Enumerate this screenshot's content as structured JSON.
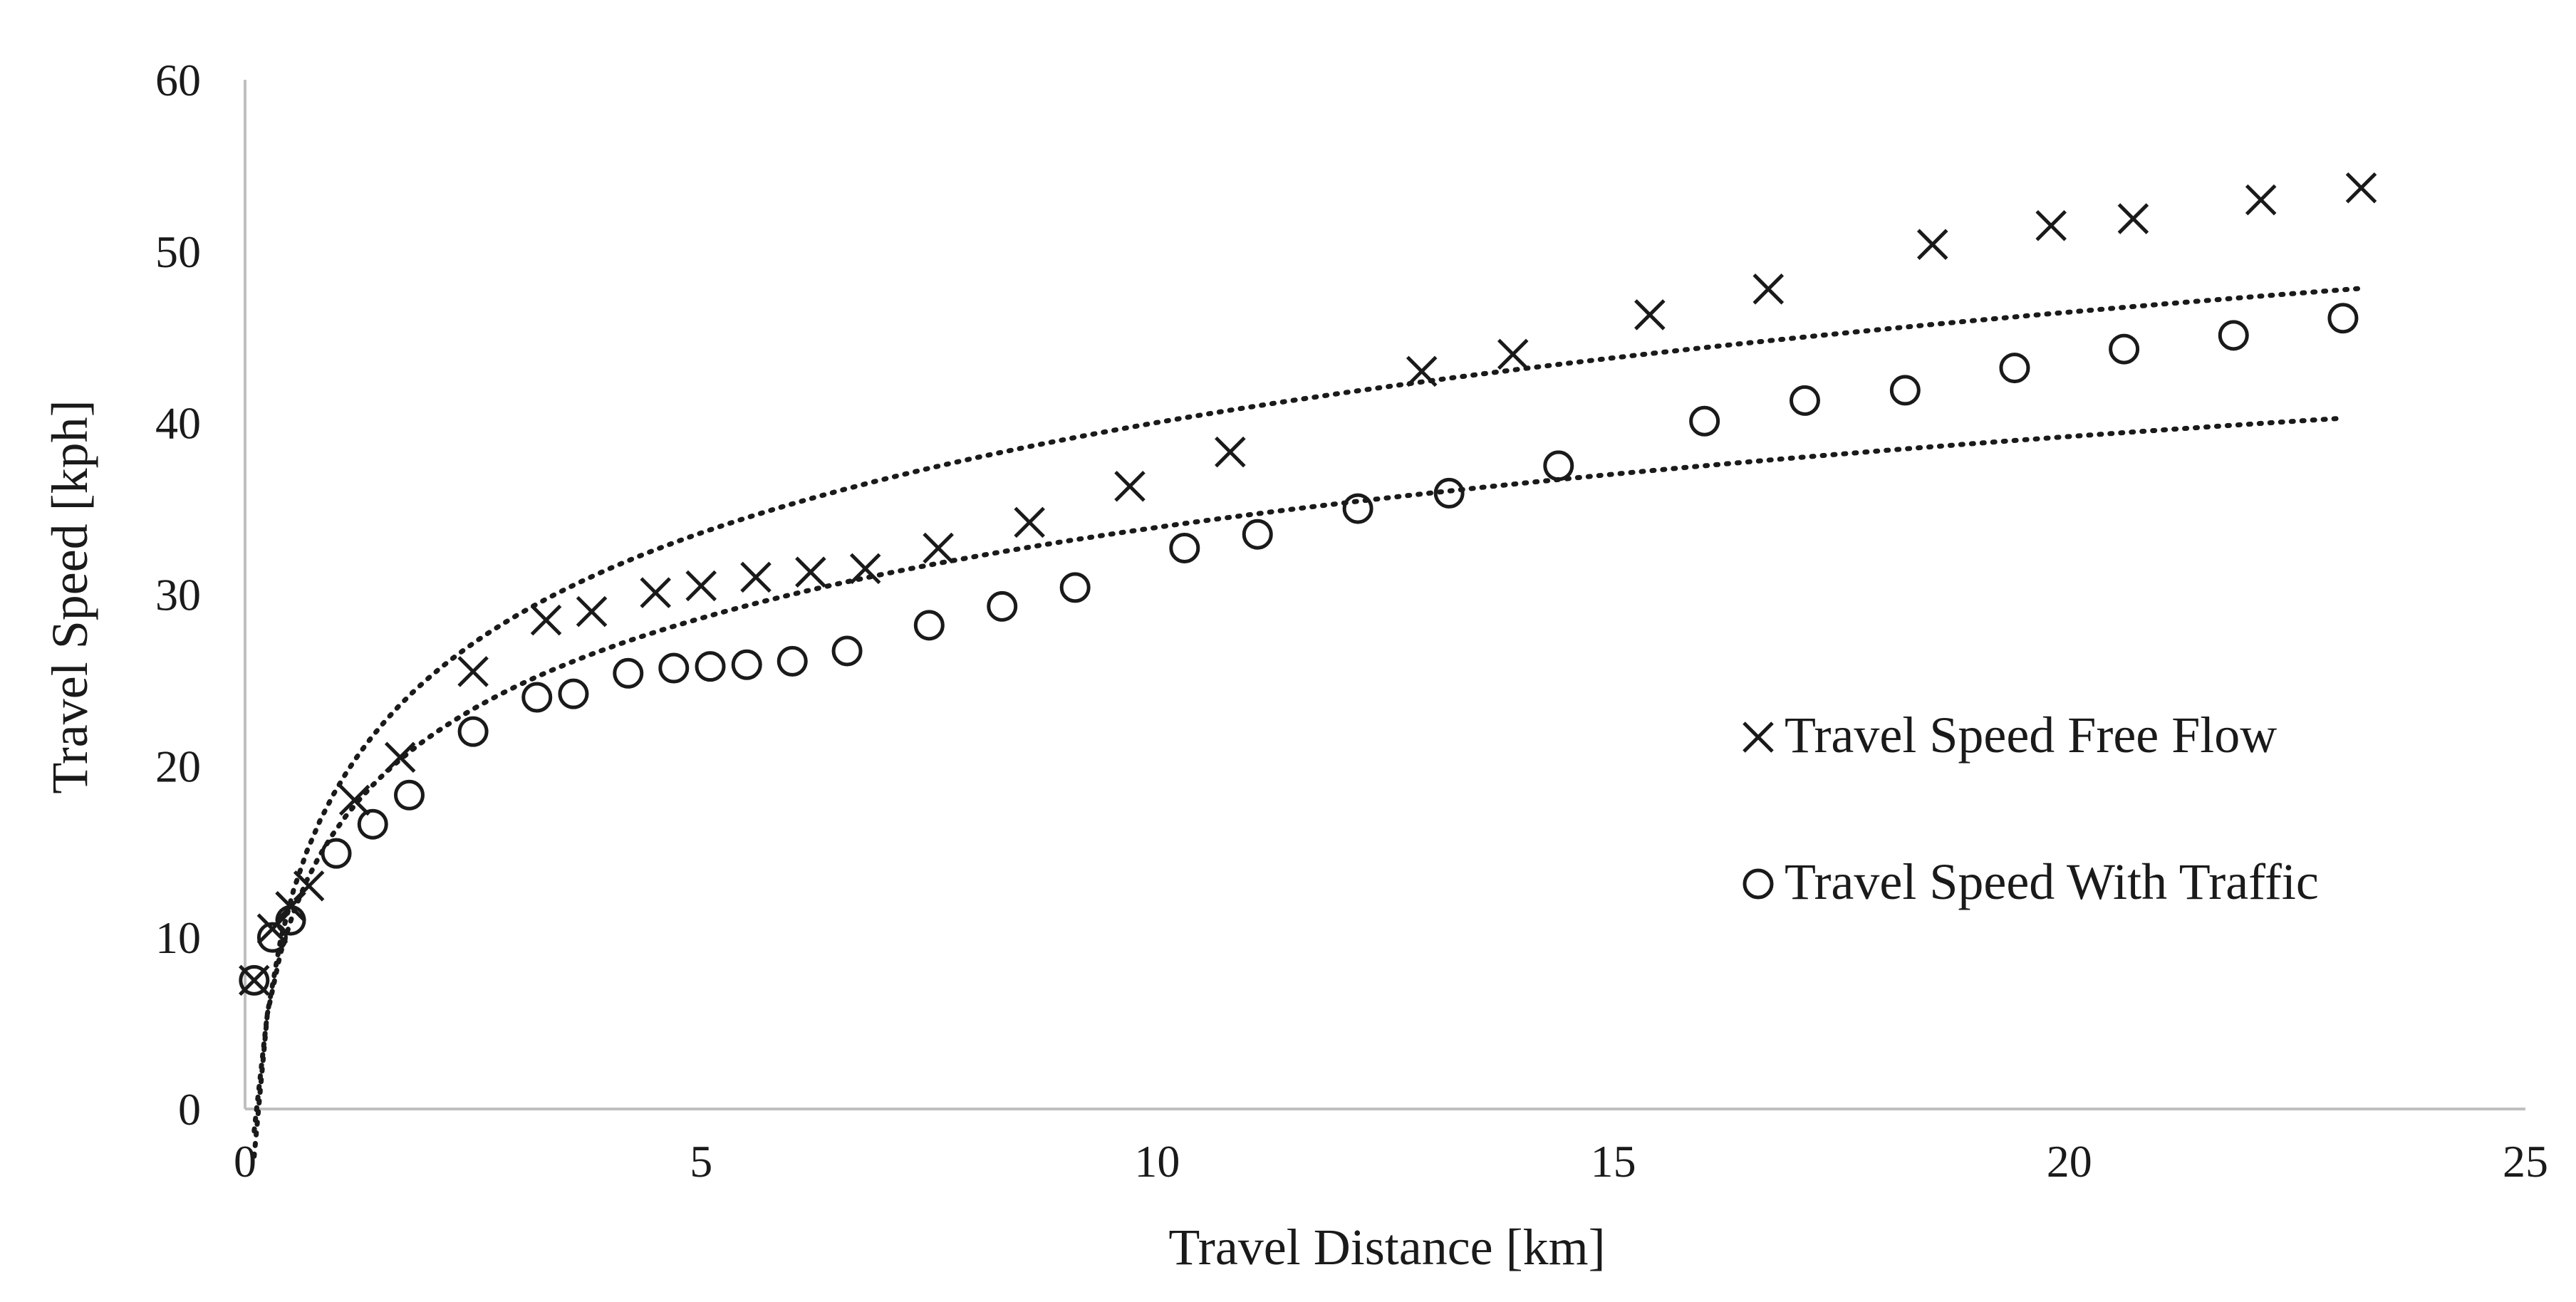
{
  "chart_data": {
    "type": "scatter",
    "xlabel": "Travel Distance [km]",
    "ylabel": "Travel Speed [kph]",
    "xlim": [
      0,
      25
    ],
    "ylim": [
      0,
      60
    ],
    "xticks": [
      0,
      5,
      10,
      15,
      20,
      25
    ],
    "yticks": [
      0,
      10,
      20,
      30,
      40,
      50,
      60
    ],
    "grid": false,
    "legend_position": "right",
    "series": [
      {
        "name": "Travel Speed Free Flow",
        "marker": "x",
        "trendline": "dotted",
        "x": [
          0.1,
          0.3,
          0.5,
          0.7,
          1.2,
          1.7,
          2.5,
          3.3,
          3.8,
          4.5,
          5.0,
          5.6,
          6.2,
          6.8,
          7.6,
          8.6,
          9.7,
          10.8,
          12.9,
          13.9,
          15.4,
          16.7,
          18.5,
          19.8,
          20.7,
          22.1,
          23.2
        ],
        "y": [
          7.5,
          10.5,
          11.8,
          13.0,
          18.0,
          20.5,
          25.5,
          28.5,
          29.0,
          30.1,
          30.5,
          31.0,
          31.3,
          31.5,
          32.7,
          34.2,
          36.3,
          38.3,
          43.0,
          44.0,
          46.3,
          47.8,
          50.4,
          51.5,
          51.9,
          53.0,
          53.7
        ]
      },
      {
        "name": "Travel Speed With Traffic",
        "marker": "o",
        "trendline": "dotted",
        "x": [
          0.1,
          0.3,
          0.5,
          1.0,
          1.4,
          1.8,
          2.5,
          3.2,
          3.6,
          4.2,
          4.7,
          5.1,
          5.5,
          6.0,
          6.6,
          7.5,
          8.3,
          9.1,
          10.3,
          11.1,
          12.2,
          13.2,
          14.4,
          16.0,
          17.1,
          18.2,
          19.4,
          20.6,
          21.8,
          23.0
        ],
        "y": [
          7.5,
          10.0,
          11.0,
          14.9,
          16.6,
          18.3,
          22.0,
          24.0,
          24.2,
          25.4,
          25.7,
          25.8,
          25.9,
          26.1,
          26.7,
          28.2,
          29.3,
          30.4,
          32.7,
          33.5,
          35.0,
          35.9,
          37.5,
          40.1,
          41.3,
          41.9,
          43.2,
          44.3,
          45.1,
          46.1
        ]
      }
    ]
  }
}
